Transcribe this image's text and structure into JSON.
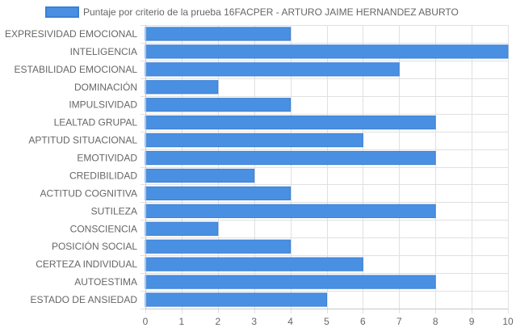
{
  "chart_data": {
    "type": "bar",
    "orientation": "horizontal",
    "categories": [
      "EXPRESIVIDAD EMOCIONAL",
      "INTELIGENCIA",
      "ESTABILIDAD EMOCIONAL",
      "DOMINACIÓN",
      "IMPULSIVIDAD",
      "LEALTAD GRUPAL",
      "APTITUD SITUACIONAL",
      "EMOTIVIDAD",
      "CREDIBILIDAD",
      "ACTITUD COGNITIVA",
      "SUTILEZA",
      "CONSCIENCIA",
      "POSICIÓN SOCIAL",
      "CERTEZA INDIVIDUAL",
      "AUTOESTIMA",
      "ESTADO DE ANSIEDAD"
    ],
    "series": [
      {
        "name": "Puntaje por criterio de la prueba 16FACPER - ARTURO JAIME HERNANDEZ ABURTO",
        "values": [
          4,
          10,
          7,
          2,
          4,
          8,
          6,
          8,
          3,
          4,
          8,
          2,
          4,
          6,
          8,
          5
        ]
      }
    ],
    "xlim": [
      0,
      10
    ],
    "xticks": [
      "0",
      "1",
      "2",
      "3",
      "4",
      "5",
      "6",
      "7",
      "8",
      "9",
      "10"
    ],
    "grid": true,
    "legend_position": "top",
    "colors": {
      "bar_fill": "#4a90e2",
      "bar_stroke": "#3a7fd5",
      "grid": "#e0e0e0",
      "axis": "#c8c8c8",
      "text": "#666666"
    }
  }
}
